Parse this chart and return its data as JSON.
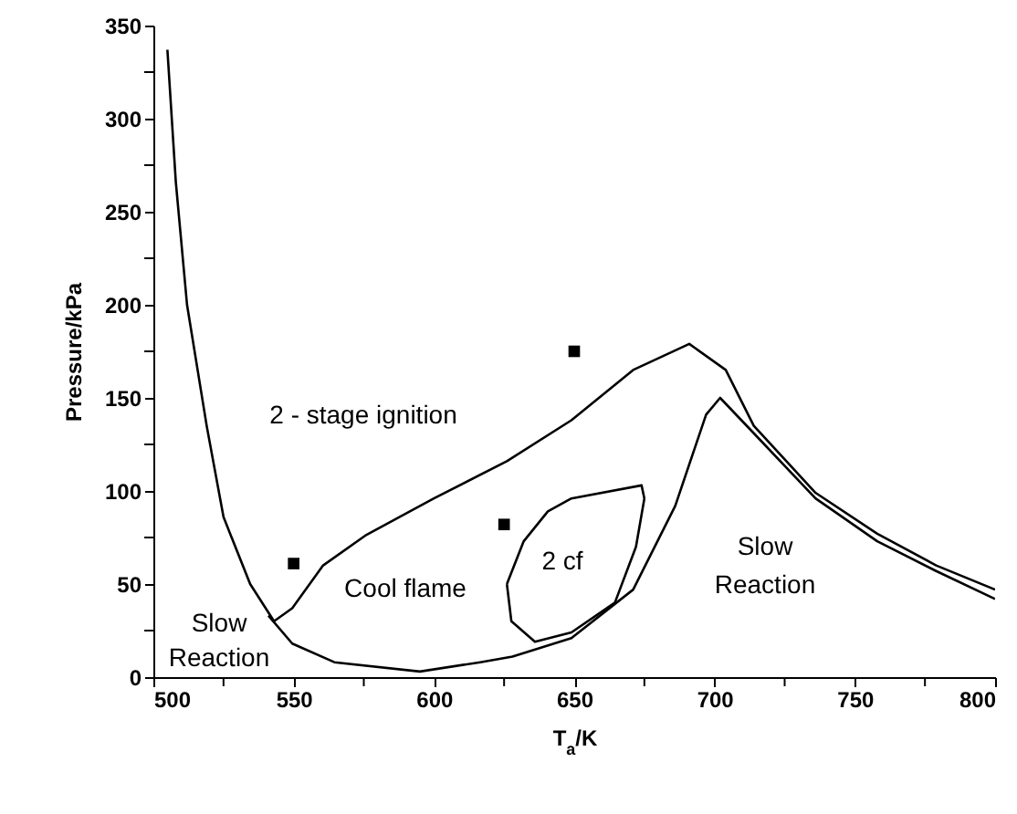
{
  "chart_data": {
    "type": "line",
    "xlabel": "T$_{a}$/K",
    "ylabel": "Pressure/kPa",
    "xlim": [
      500,
      800
    ],
    "ylim": [
      0,
      350
    ],
    "xticks": [
      500,
      {
        "value": 525,
        "label": null
      },
      550,
      {
        "value": 575,
        "label": null
      },
      600,
      {
        "value": 625,
        "label": null
      },
      650,
      {
        "value": 675,
        "label": null
      },
      700,
      {
        "value": 725,
        "label": null
      },
      750,
      {
        "value": 775,
        "label": null
      },
      800
    ],
    "yticks": [
      0,
      {
        "value": 25,
        "label": null
      },
      50,
      {
        "value": 75,
        "label": null
      },
      100,
      {
        "value": 125,
        "label": null
      },
      150,
      {
        "value": 175,
        "label": null
      },
      200,
      {
        "value": 225,
        "label": null
      },
      250,
      {
        "value": 275,
        "label": null
      },
      300,
      {
        "value": 325,
        "label": null
      },
      350
    ],
    "grid": false,
    "series": [
      {
        "color": "#000000",
        "marker": "none",
        "x": [
          505,
          508,
          512,
          519,
          525,
          534.5,
          543,
          549.5,
          560.5,
          575.5,
          600,
          626,
          649,
          671,
          691,
          704,
          714,
          736,
          758,
          779,
          800
        ],
        "values": [
          337,
          266,
          200,
          135,
          86,
          50,
          30,
          37,
          60,
          76,
          96,
          116,
          138,
          165,
          179,
          165,
          135,
          99,
          77,
          60,
          47
        ]
      },
      {
        "color": "#000000",
        "marker": "none",
        "x": [
          541,
          549.5,
          564.5,
          595,
          616.5,
          628,
          649,
          671,
          686,
          697,
          702,
          714,
          736,
          758,
          779,
          800
        ],
        "values": [
          33,
          18,
          8,
          3,
          8,
          11,
          21,
          47,
          92,
          141,
          150,
          131,
          96,
          73,
          57,
          42
        ]
      },
      {
        "color": "#000000",
        "marker": "none",
        "x": [
          626,
          632,
          640.6,
          649,
          674,
          675,
          null,
          626,
          627.6,
          636,
          649,
          664.5,
          672,
          675
        ],
        "values": [
          50,
          73,
          89,
          96,
          103,
          96,
          null,
          50,
          30,
          19,
          24,
          40,
          70,
          96
        ]
      },
      {
        "type": "scatter",
        "color": "#000000",
        "marker": "square",
        "x": [
          550,
          625,
          650
        ],
        "values": [
          61,
          82,
          175
        ]
      }
    ],
    "annotations": [
      "2 - stage ignition",
      "Cool flame",
      "2 cf",
      "Slow\nReaction",
      "Slow\nReaction"
    ]
  }
}
